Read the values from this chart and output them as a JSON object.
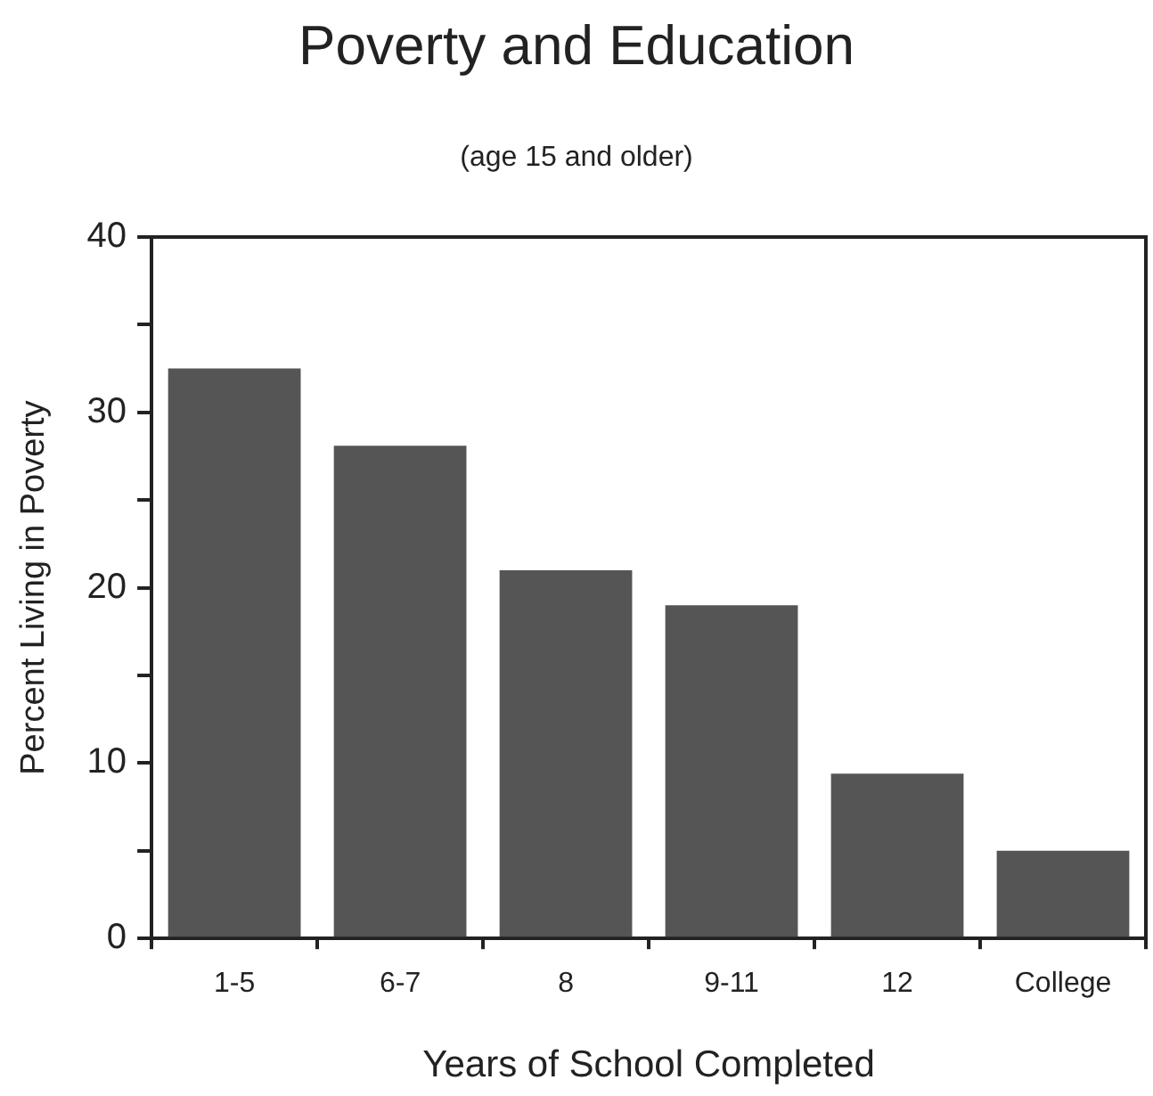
{
  "chart_data": {
    "type": "bar",
    "title": "Poverty and Education",
    "subtitle": "(age 15 and older)",
    "xlabel": "Years of School Completed",
    "ylabel": "Percent Living in Poverty",
    "categories": [
      "1-5",
      "6-7",
      "8",
      "9-11",
      "12",
      "College"
    ],
    "values": [
      32.5,
      28.1,
      21.0,
      19.0,
      9.4,
      5.0
    ],
    "color": "#555555",
    "ylim": [
      0,
      40
    ],
    "yticks": [
      0,
      {
        "value": 5,
        "label": null
      },
      10,
      {
        "value": 15,
        "label": null
      },
      20,
      {
        "value": 25,
        "label": null
      },
      30,
      {
        "value": 35,
        "label": null
      },
      40
    ],
    "grid": false,
    "legend": false
  }
}
